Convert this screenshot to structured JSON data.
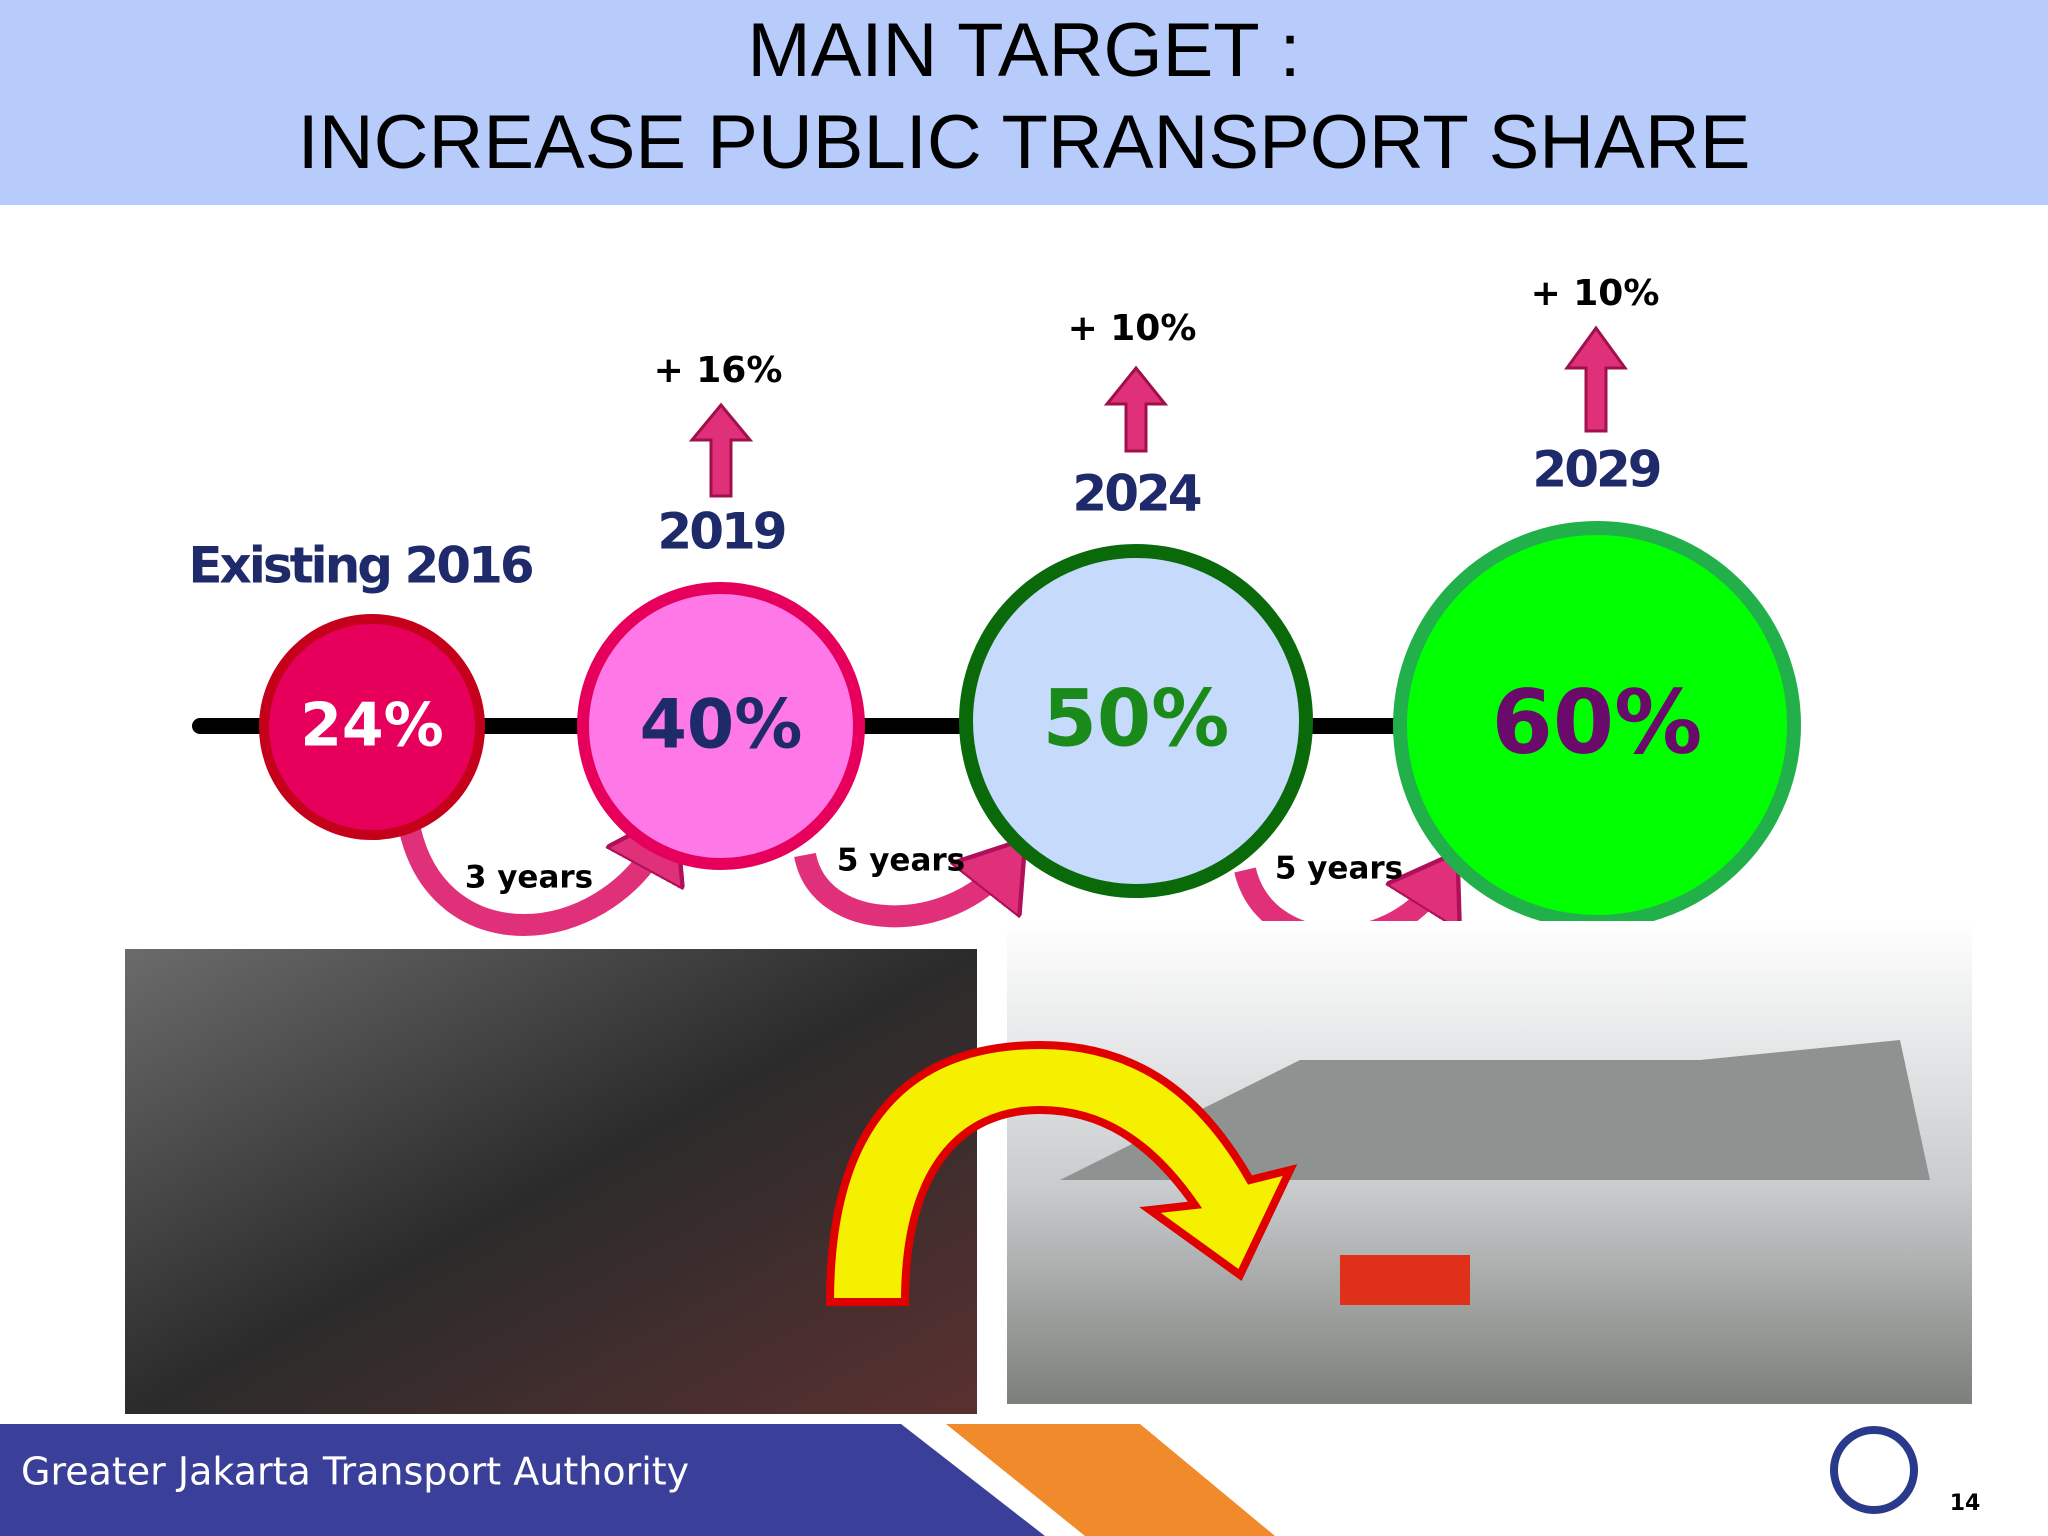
{
  "header": {
    "title_line1": "MAIN TARGET :",
    "title_line2": "INCREASE PUBLIC TRANSPORT SHARE"
  },
  "milestones": [
    {
      "label": "Existing 2016",
      "share": "24%"
    },
    {
      "label": "2019",
      "share": "40%",
      "increase": "+ 16%"
    },
    {
      "label": "2024",
      "share": "50%",
      "increase": "+ 10%"
    },
    {
      "label": "2029",
      "share": "60%",
      "increase": "+ 10%"
    }
  ],
  "intervals": [
    "3 years",
    "5 years",
    "5 years"
  ],
  "footer": {
    "organization": "Greater Jakarta Transport Authority",
    "page": "14"
  }
}
